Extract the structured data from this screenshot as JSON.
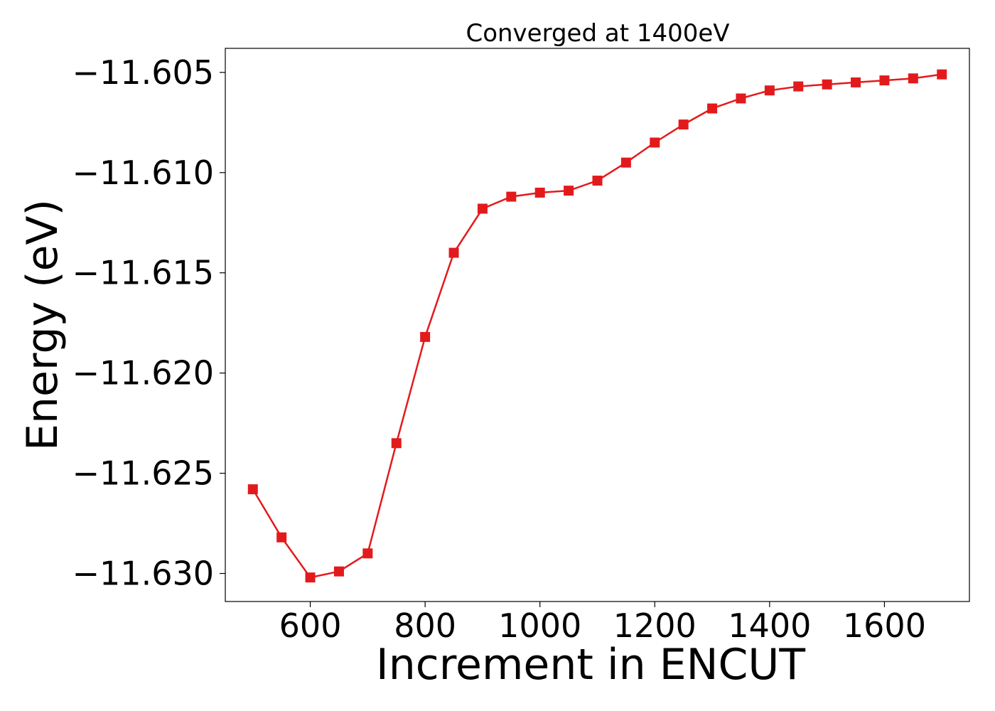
{
  "chart_data": {
    "type": "line",
    "title": "Converged at 1400eV",
    "xlabel": "Increment in ENCUT",
    "ylabel": "Energy (eV)",
    "x": [
      500,
      550,
      600,
      650,
      700,
      750,
      800,
      850,
      900,
      950,
      1000,
      1050,
      1100,
      1150,
      1200,
      1250,
      1300,
      1350,
      1400,
      1450,
      1500,
      1550,
      1600,
      1650,
      1700
    ],
    "series": [
      {
        "color": "#e31a1c",
        "marker": "square",
        "values": [
          -11.6258,
          -11.6282,
          -11.6302,
          -11.6299,
          -11.629,
          -11.6235,
          -11.6182,
          -11.614,
          -11.6118,
          -11.6112,
          -11.611,
          -11.6109,
          -11.6104,
          -11.6095,
          -11.6085,
          -11.6076,
          -11.6068,
          -11.6063,
          -11.6059,
          -11.6057,
          -11.6056,
          -11.6055,
          -11.6054,
          -11.6053,
          -11.6051
        ]
      }
    ],
    "xlim": [
      452,
      1748
    ],
    "ylim": [
      -11.6314,
      -11.6038
    ],
    "xticks": [
      600,
      800,
      1000,
      1200,
      1400,
      1600
    ],
    "xtick_labels": [
      "600",
      "800",
      "1000",
      "1200",
      "1400",
      "1600"
    ],
    "yticks": [
      -11.605,
      -11.61,
      -11.615,
      -11.62,
      -11.625,
      -11.63
    ],
    "ytick_labels": [
      "−11.605",
      "−11.610",
      "−11.615",
      "−11.620",
      "−11.625",
      "−11.630"
    ],
    "grid": false
  }
}
